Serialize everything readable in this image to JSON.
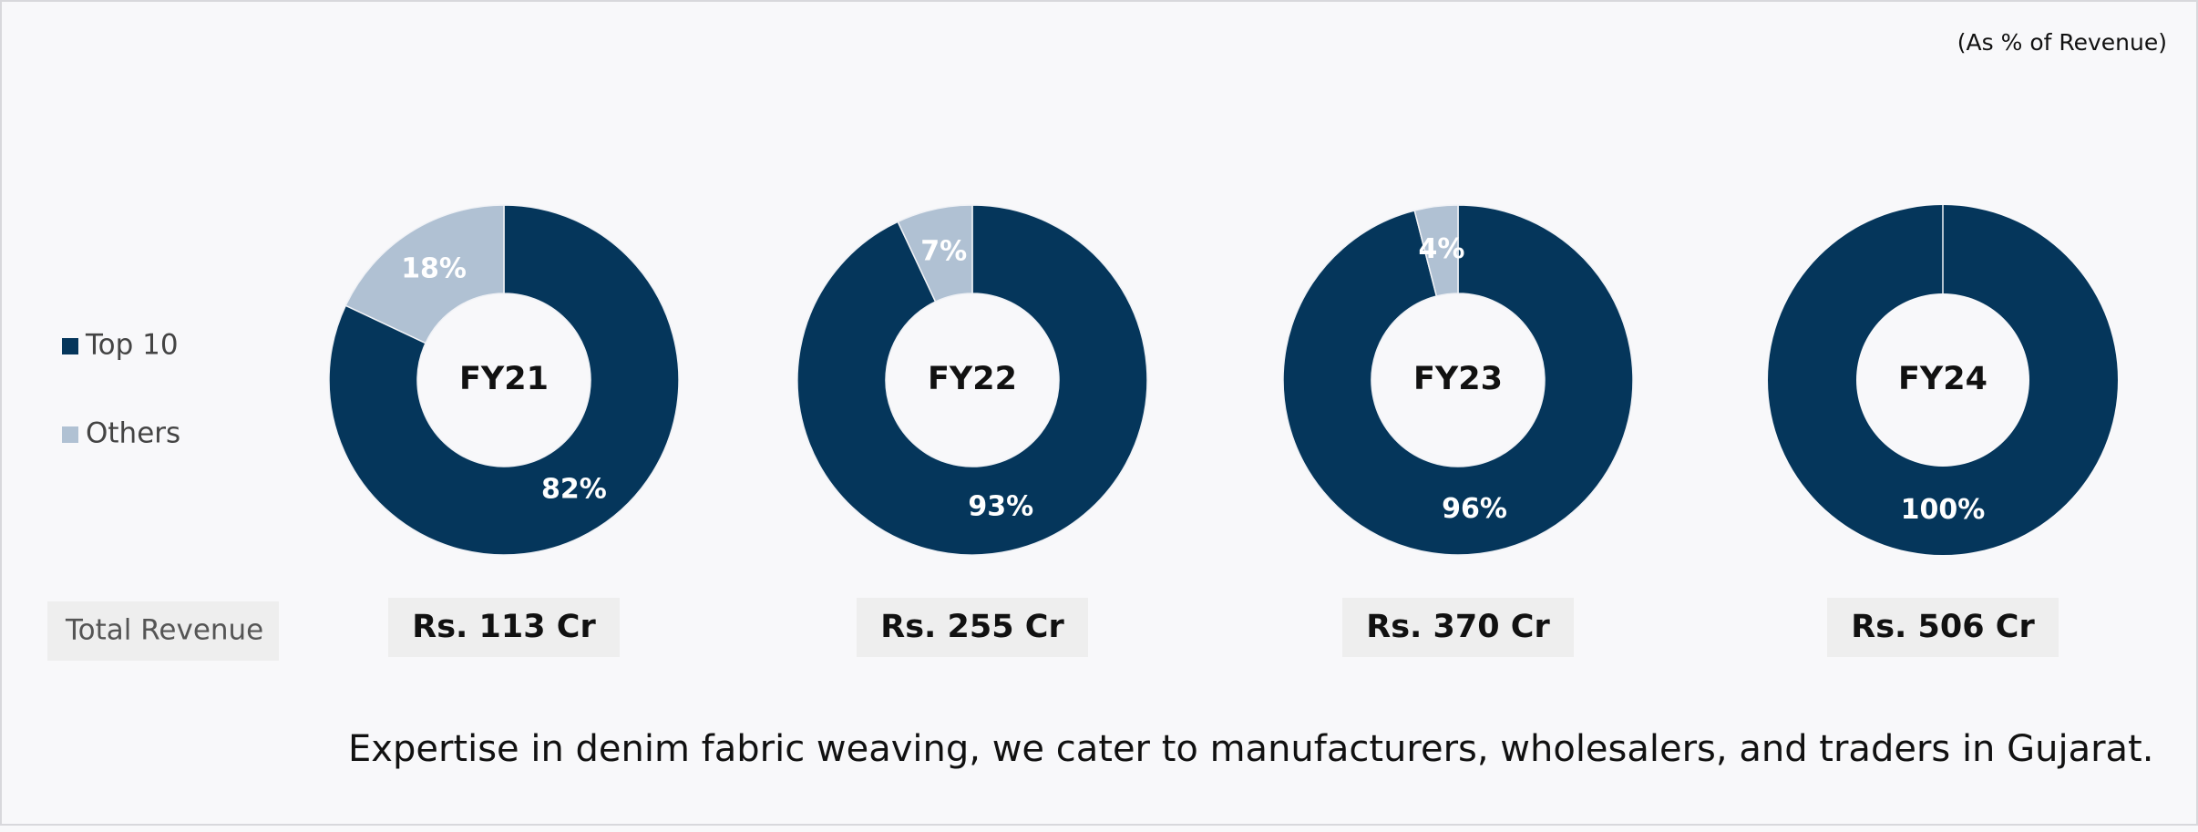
{
  "note": "(As % of Revenue)",
  "revenue_label": "Total Revenue",
  "footer": "Expertise in denim fabric weaving, we cater to manufacturers, wholesalers, and traders in Gujarat.",
  "chart_data": [
    {
      "type": "pie",
      "title": "FY21",
      "categories": [
        "Top 10",
        "Others"
      ],
      "colors": [
        "#05365b",
        "#b0c1d3"
      ],
      "values": [
        82,
        18
      ],
      "value_labels": [
        "82%",
        "18%"
      ],
      "revenue": "Rs. 113 Cr"
    },
    {
      "type": "pie",
      "title": "FY22",
      "categories": [
        "Top 10",
        "Others"
      ],
      "colors": [
        "#05365b",
        "#b0c1d3"
      ],
      "values": [
        93,
        7
      ],
      "value_labels": [
        "93%",
        "7%"
      ],
      "revenue": "Rs. 255 Cr"
    },
    {
      "type": "pie",
      "title": "FY23",
      "categories": [
        "Top 10",
        "Others"
      ],
      "colors": [
        "#05365b",
        "#b0c1d3"
      ],
      "values": [
        96,
        4
      ],
      "value_labels": [
        "96%",
        "4%"
      ],
      "revenue": "Rs. 370 Cr"
    },
    {
      "type": "pie",
      "title": "FY24",
      "categories": [
        "Top 10",
        "Others"
      ],
      "colors": [
        "#05365b",
        "#b0c1d3"
      ],
      "values": [
        100,
        0
      ],
      "value_labels": [
        "100%",
        null
      ],
      "revenue": "Rs. 506 Cr"
    }
  ]
}
